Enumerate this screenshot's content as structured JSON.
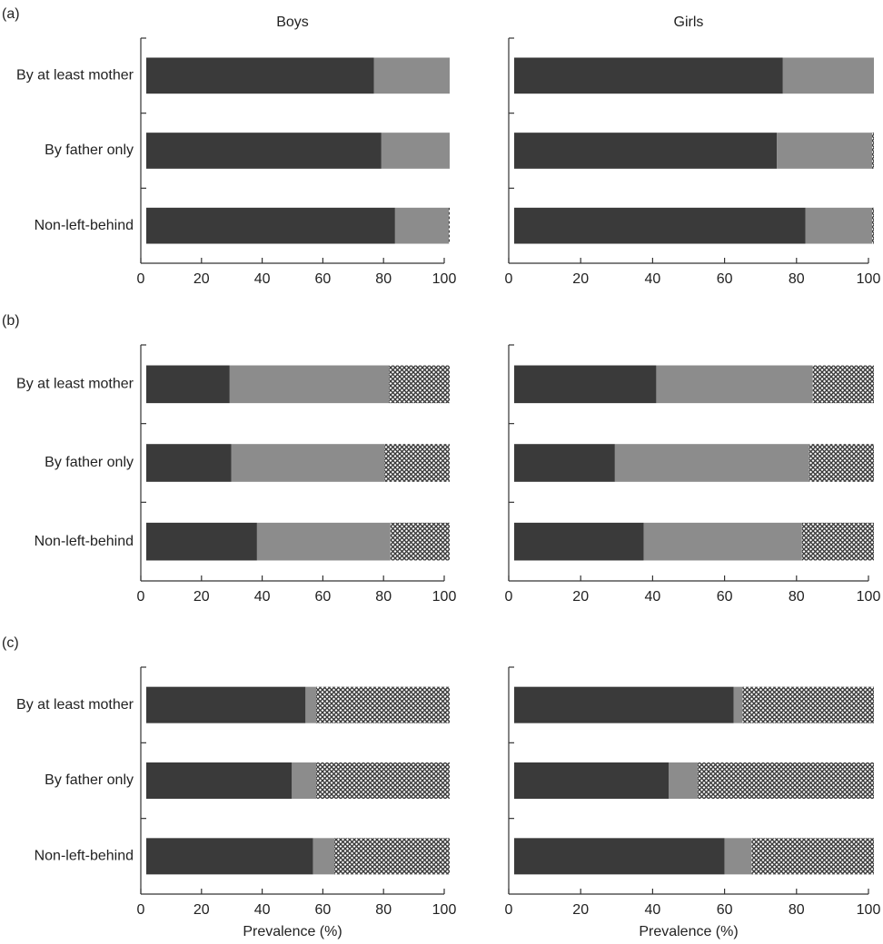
{
  "chart_data": [
    {
      "type": "bar",
      "orientation": "horizontal",
      "stacked": true,
      "panel_label": "(a)",
      "title": "Boys",
      "categories": [
        "By at least mother",
        "By father only",
        "Non-left-behind"
      ],
      "series": [
        {
          "color": "#3a3a3a",
          "values": [
            75,
            77.5,
            82
          ]
        },
        {
          "color": "#8c8c8c",
          "values": [
            25,
            22.5,
            17.7
          ]
        },
        {
          "color": "#3a3a3a",
          "pattern": "crosshatch",
          "values": [
            0,
            0,
            0.3
          ]
        }
      ],
      "xlim": [
        0,
        100
      ],
      "xticks": [
        0,
        20,
        40,
        60,
        80,
        100
      ]
    },
    {
      "type": "bar",
      "orientation": "horizontal",
      "stacked": true,
      "title": "Girls",
      "categories": [
        null,
        null,
        null
      ],
      "series": [
        {
          "color": "#3a3a3a",
          "values": [
            74.7,
            73,
            81
          ]
        },
        {
          "color": "#8c8c8c",
          "values": [
            25.3,
            26.5,
            18.5
          ]
        },
        {
          "color": "#3a3a3a",
          "pattern": "crosshatch",
          "values": [
            0,
            0.5,
            0.5
          ]
        }
      ],
      "xlim": [
        0,
        100
      ],
      "xticks": [
        0,
        20,
        40,
        60,
        80,
        100
      ]
    },
    {
      "type": "bar",
      "orientation": "horizontal",
      "stacked": true,
      "panel_label": "(b)",
      "categories": [
        "By at least mother",
        "By father only",
        "Non-left-behind"
      ],
      "series": [
        {
          "color": "#3a3a3a",
          "values": [
            27.5,
            28,
            36.5
          ]
        },
        {
          "color": "#8c8c8c",
          "values": [
            52.5,
            50.5,
            44
          ]
        },
        {
          "color": "#3a3a3a",
          "pattern": "crosshatch",
          "values": [
            20,
            21.5,
            19.5
          ]
        }
      ],
      "xlim": [
        0,
        100
      ],
      "xticks": [
        0,
        20,
        40,
        60,
        80,
        100
      ]
    },
    {
      "type": "bar",
      "orientation": "horizontal",
      "stacked": true,
      "categories": [
        null,
        null,
        null
      ],
      "series": [
        {
          "color": "#3a3a3a",
          "values": [
            39.5,
            28,
            36
          ]
        },
        {
          "color": "#8c8c8c",
          "values": [
            43.5,
            54,
            44
          ]
        },
        {
          "color": "#3a3a3a",
          "pattern": "crosshatch",
          "values": [
            17,
            18,
            20
          ]
        }
      ],
      "xlim": [
        0,
        100
      ],
      "xticks": [
        0,
        20,
        40,
        60,
        80,
        100
      ]
    },
    {
      "type": "bar",
      "orientation": "horizontal",
      "stacked": true,
      "panel_label": "(c)",
      "xlabel": "Prevalence (%)",
      "categories": [
        "By at least mother",
        "By father only",
        "Non-left-behind"
      ],
      "series": [
        {
          "color": "#3a3a3a",
          "values": [
            52.5,
            48,
            55
          ]
        },
        {
          "color": "#8c8c8c",
          "values": [
            3.5,
            8,
            7
          ]
        },
        {
          "color": "#3a3a3a",
          "pattern": "crosshatch",
          "values": [
            44,
            44,
            38
          ]
        }
      ],
      "xlim": [
        0,
        100
      ],
      "xticks": [
        0,
        20,
        40,
        60,
        80,
        100
      ]
    },
    {
      "type": "bar",
      "orientation": "horizontal",
      "stacked": true,
      "xlabel": "Prevalence (%)",
      "categories": [
        null,
        null,
        null
      ],
      "series": [
        {
          "color": "#3a3a3a",
          "values": [
            61,
            43,
            58.5
          ]
        },
        {
          "color": "#8c8c8c",
          "values": [
            2.5,
            8,
            7.5
          ]
        },
        {
          "color": "#3a3a3a",
          "pattern": "crosshatch",
          "values": [
            36.5,
            49,
            34
          ]
        }
      ],
      "xlim": [
        0,
        100
      ],
      "xticks": [
        0,
        20,
        40,
        60,
        80,
        100
      ]
    }
  ]
}
